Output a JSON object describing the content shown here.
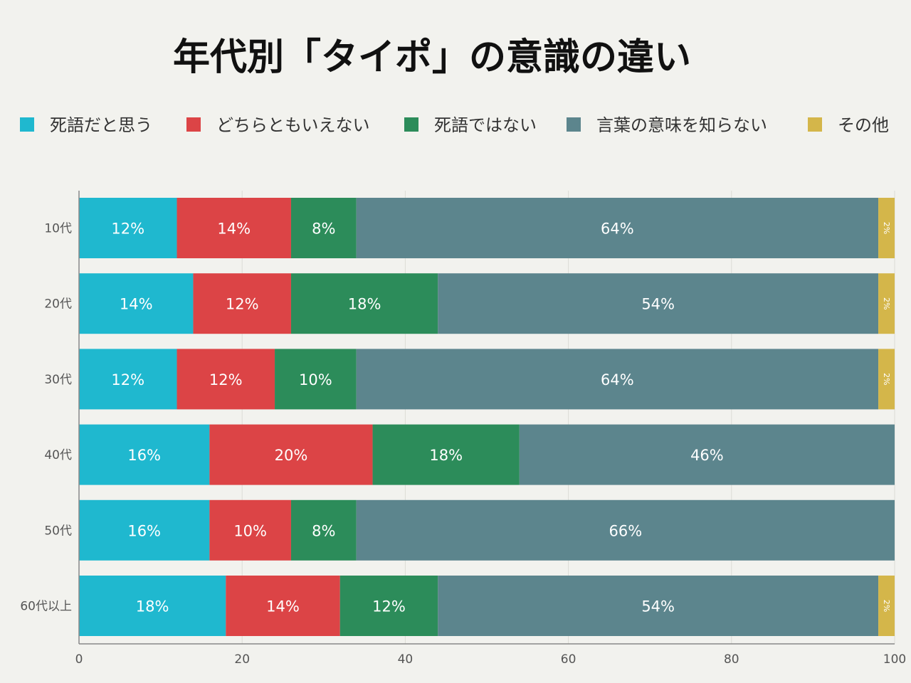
{
  "chart_data": {
    "type": "bar",
    "orientation": "horizontal",
    "stacked": true,
    "title": "年代別「タイポ」の意識の違い",
    "categories": [
      "10代",
      "20代",
      "30代",
      "40代",
      "50代",
      "60代以上"
    ],
    "series": [
      {
        "name": "死語だと思う",
        "color": "#1fb8cf",
        "values": [
          12,
          14,
          12,
          16,
          16,
          18
        ],
        "labels": [
          "12%",
          "14%",
          "12%",
          "16%",
          "16%",
          "18%"
        ]
      },
      {
        "name": "どちらともいえない",
        "color": "#dc4446",
        "values": [
          14,
          12,
          12,
          20,
          10,
          14
        ],
        "labels": [
          "14%",
          "12%",
          "12%",
          "20%",
          "10%",
          "14%"
        ]
      },
      {
        "name": "死語ではない",
        "color": "#2c8c5a",
        "values": [
          8,
          18,
          10,
          18,
          8,
          12
        ],
        "labels": [
          "8%",
          "18%",
          "10%",
          "18%",
          "8%",
          "12%"
        ]
      },
      {
        "name": "言葉の意味を知らない",
        "color": "#5c858d",
        "values": [
          64,
          54,
          64,
          46,
          66,
          54
        ],
        "labels": [
          "64%",
          "54%",
          "64%",
          "46%",
          "66%",
          "54%"
        ]
      },
      {
        "name": "その他",
        "color": "#d4b64a",
        "values": [
          2,
          2,
          2,
          0,
          0,
          2
        ],
        "labels": [
          "2%",
          "2%",
          "2%",
          "",
          "",
          "2%"
        ]
      }
    ],
    "xlim": [
      0,
      100
    ],
    "xticks": [
      0,
      20,
      40,
      60,
      80,
      100
    ],
    "xtick_labels": [
      "0",
      "20",
      "40",
      "60",
      "80",
      "100"
    ],
    "grid": "vertical",
    "legend_position": "top"
  }
}
